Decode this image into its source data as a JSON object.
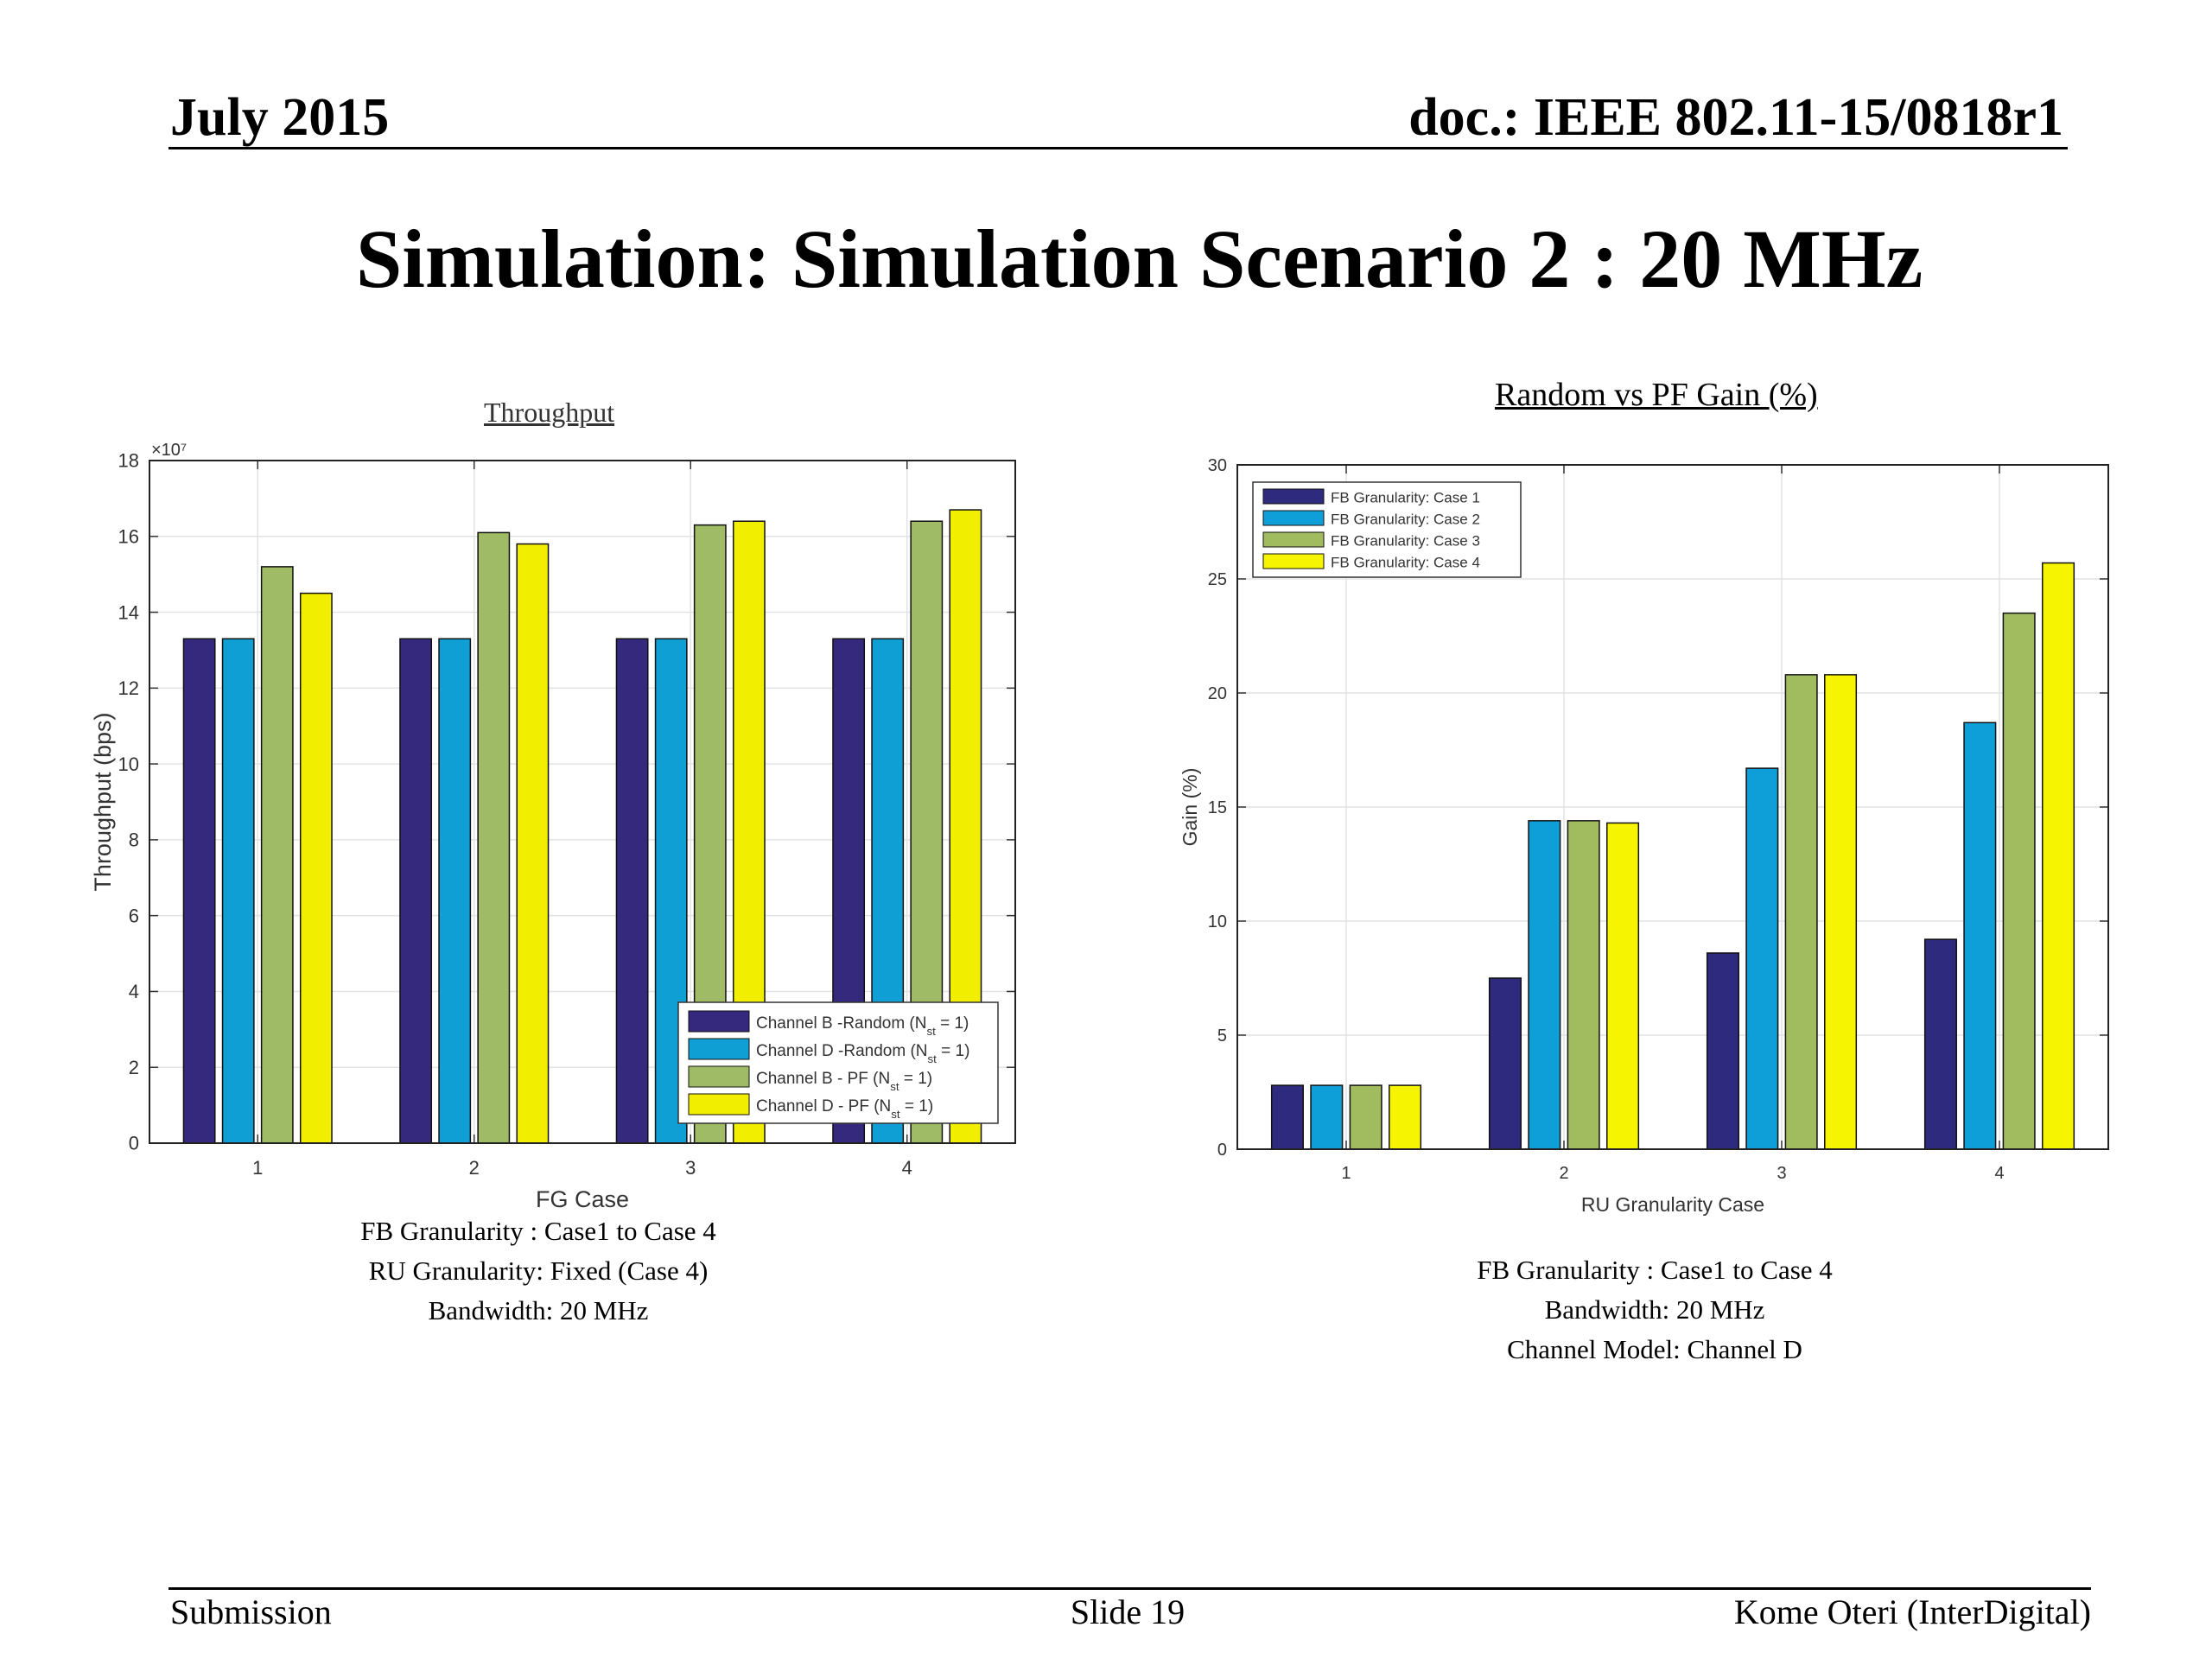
{
  "header": {
    "date": "July 2015",
    "doc": "doc.: IEEE 802.11-15/0818r1"
  },
  "title": "Simulation: Simulation Scenario 2 : 20 MHz",
  "chart_data": [
    {
      "type": "bar",
      "title": "Throughput",
      "xlabel": "FG  Case",
      "ylabel": "Throughput   (bps)",
      "y_multiplier_label": "×10⁷",
      "ylim": [
        0,
        18
      ],
      "yticks": [
        "0",
        "2",
        "4",
        "6",
        "8",
        "10",
        "12",
        "14",
        "16",
        "18"
      ],
      "categories": [
        "1",
        "2",
        "3",
        "4"
      ],
      "series": [
        {
          "name": "Channel B -Random (N",
          "name_sub": "st",
          "name_tail": " = 1)",
          "color": "#35297d",
          "values": [
            13.3,
            13.3,
            13.3,
            13.3
          ]
        },
        {
          "name": "Channel D -Random (N",
          "name_sub": "st",
          "name_tail": " = 1)",
          "color": "#0f9fd4",
          "values": [
            13.3,
            13.3,
            13.3,
            13.3
          ]
        },
        {
          "name": "Channel B - PF (N",
          "name_sub": "st",
          "name_tail": " = 1)",
          "color": "#9fbb66",
          "values": [
            15.2,
            16.1,
            16.3,
            16.4
          ]
        },
        {
          "name": "Channel D - PF (N",
          "name_sub": "st",
          "name_tail": " = 1)",
          "color": "#f2ee00",
          "values": [
            14.5,
            15.8,
            16.4,
            16.7
          ]
        }
      ],
      "grid": true,
      "legend_position": "bottom-right"
    },
    {
      "type": "bar",
      "title": "Random vs PF Gain  (%)",
      "xlabel": "RU Granularity Case",
      "ylabel": "Gain (%)",
      "ylim": [
        0,
        30
      ],
      "yticks": [
        "0",
        "5",
        "10",
        "15",
        "20",
        "25",
        "30"
      ],
      "categories": [
        "1",
        "2",
        "3",
        "4"
      ],
      "series": [
        {
          "name": "FB Granularity: Case 1",
          "color": "#2e2a7e",
          "values": [
            2.8,
            7.5,
            8.6,
            9.2
          ]
        },
        {
          "name": "FB Granularity: Case 2",
          "color": "#0e9fd8",
          "values": [
            2.8,
            14.4,
            16.7,
            18.7
          ]
        },
        {
          "name": "FB Granularity: Case 3",
          "color": "#a1bb5f",
          "values": [
            2.8,
            14.4,
            20.8,
            23.5
          ]
        },
        {
          "name": "FB Granularity: Case 4",
          "color": "#f7f400",
          "values": [
            2.8,
            14.3,
            20.8,
            25.7
          ]
        }
      ],
      "grid": true,
      "legend_position": "top-left"
    }
  ],
  "captions": {
    "left": [
      "FB Granularity : Case1 to Case 4",
      "RU Granularity: Fixed (Case 4)",
      "Bandwidth: 20 MHz"
    ],
    "right": [
      "FB Granularity : Case1 to Case 4",
      "Bandwidth: 20 MHz",
      "Channel Model: Channel D"
    ]
  },
  "footer": {
    "left": "Submission",
    "center": "Slide 19",
    "right": "Kome Oteri (InterDigital)"
  }
}
